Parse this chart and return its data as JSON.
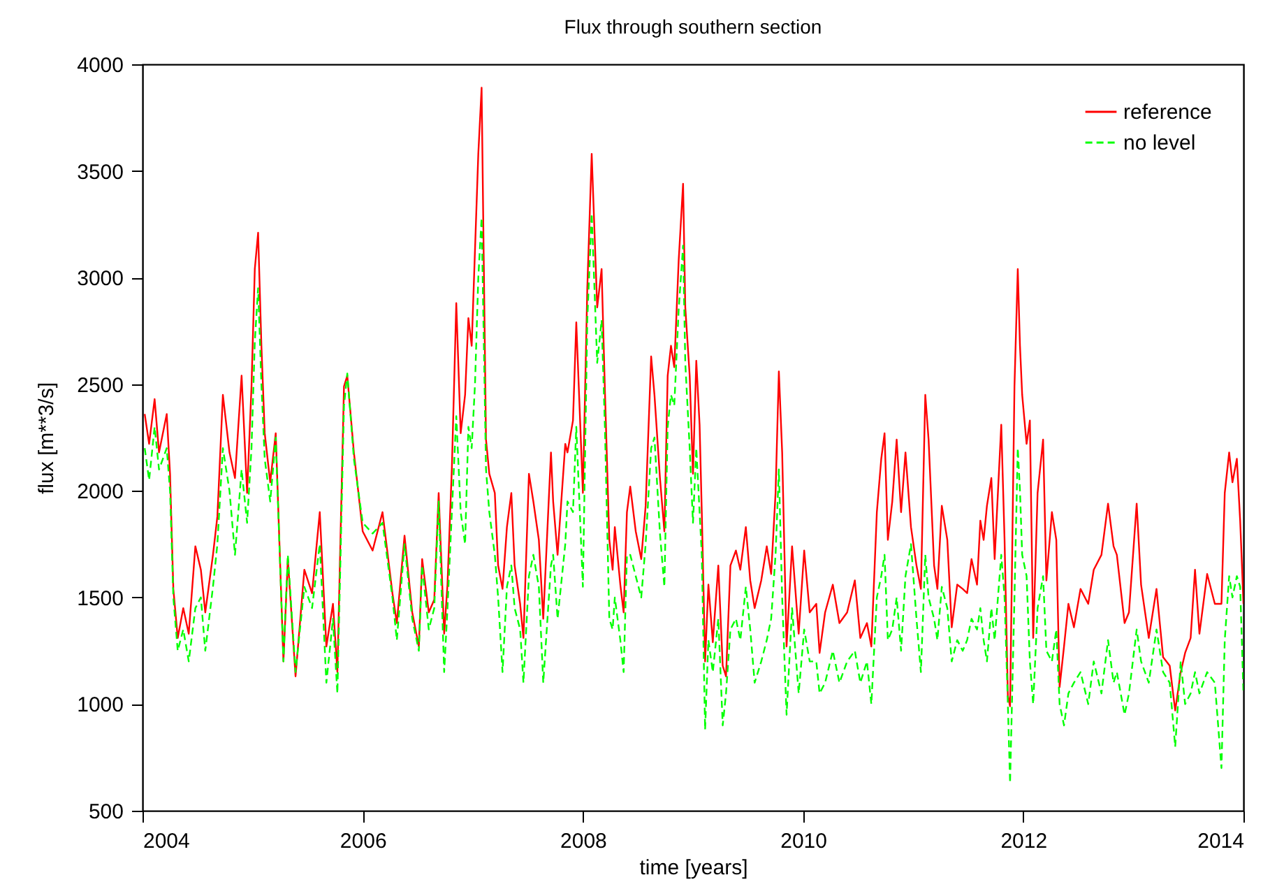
{
  "chart_data": {
    "type": "line",
    "title": "Flux through southern section",
    "xlabel": "time [years]",
    "ylabel": "flux [m**3/s]",
    "xlim": [
      2004,
      2014
    ],
    "xticks": [
      2004,
      2006,
      2008,
      2010,
      2012,
      2014
    ],
    "ylim": [
      500,
      4000
    ],
    "yticks": [
      500,
      1000,
      1500,
      2000,
      2500,
      3000,
      3500,
      4000
    ],
    "grid": false,
    "legend": "top right",
    "marker": "none",
    "x": [
      2004.02,
      2004.06,
      2004.11,
      2004.15,
      2004.22,
      2004.25,
      2004.28,
      2004.32,
      2004.37,
      2004.42,
      2004.48,
      2004.53,
      2004.57,
      2004.64,
      2004.68,
      2004.73,
      2004.79,
      2004.84,
      2004.9,
      2004.95,
      2004.99,
      2005.02,
      2005.05,
      2005.08,
      2005.11,
      2005.16,
      2005.21,
      2005.28,
      2005.32,
      2005.39,
      2005.47,
      2005.54,
      2005.61,
      2005.67,
      2005.73,
      2005.77,
      2005.83,
      2005.86,
      2005.92,
      2006.0,
      2006.09,
      2006.18,
      2006.27,
      2006.31,
      2006.38,
      2006.45,
      2006.51,
      2006.54,
      2006.6,
      2006.65,
      2006.69,
      2006.74,
      2006.77,
      2006.81,
      2006.85,
      2006.89,
      2006.93,
      2006.96,
      2006.99,
      2007.02,
      2007.05,
      2007.08,
      2007.1,
      2007.12,
      2007.15,
      2007.2,
      2007.23,
      2007.27,
      2007.31,
      2007.35,
      2007.38,
      2007.43,
      2007.46,
      2007.51,
      2007.55,
      2007.6,
      2007.64,
      2007.71,
      2007.73,
      2007.77,
      2007.84,
      2007.86,
      2007.91,
      2007.94,
      2008.0,
      2008.04,
      2008.08,
      2008.13,
      2008.17,
      2008.2,
      2008.24,
      2008.27,
      2008.29,
      2008.34,
      2008.37,
      2008.4,
      2008.43,
      2008.48,
      2008.53,
      2008.57,
      2008.62,
      2008.65,
      2008.7,
      2008.74,
      2008.77,
      2008.8,
      2008.83,
      2008.87,
      2008.91,
      2008.93,
      2008.97,
      2009.0,
      2009.03,
      2009.06,
      2009.08,
      2009.11,
      2009.14,
      2009.18,
      2009.23,
      2009.27,
      2009.3,
      2009.34,
      2009.39,
      2009.43,
      2009.48,
      2009.52,
      2009.56,
      2009.62,
      2009.67,
      2009.71,
      2009.75,
      2009.78,
      2009.81,
      2009.85,
      2009.9,
      2009.96,
      2010.01,
      2010.06,
      2010.12,
      2010.15,
      2010.2,
      2010.27,
      2010.33,
      2010.4,
      2010.47,
      2010.52,
      2010.58,
      2010.62,
      2010.67,
      2010.71,
      2010.74,
      2010.77,
      2010.81,
      2010.85,
      2010.89,
      2010.93,
      2010.98,
      2011.03,
      2011.07,
      2011.11,
      2011.14,
      2011.19,
      2011.22,
      2011.26,
      2011.31,
      2011.35,
      2011.4,
      2011.45,
      2011.49,
      2011.53,
      2011.58,
      2011.61,
      2011.64,
      2011.67,
      2011.71,
      2011.74,
      2011.8,
      2011.83,
      2011.86,
      2011.88,
      2011.92,
      2011.95,
      2011.97,
      2011.99,
      2012.03,
      2012.06,
      2012.09,
      2012.13,
      2012.18,
      2012.21,
      2012.26,
      2012.3,
      2012.33,
      2012.37,
      2012.41,
      2012.46,
      2012.52,
      2012.59,
      2012.64,
      2012.71,
      2012.77,
      2012.82,
      2012.85,
      2012.92,
      2012.96,
      2013.03,
      2013.07,
      2013.14,
      2013.21,
      2013.27,
      2013.33,
      2013.38,
      2013.43,
      2013.47,
      2013.52,
      2013.56,
      2013.6,
      2013.67,
      2013.74,
      2013.8,
      2013.83,
      2013.87,
      2013.9,
      2013.94,
      2013.97,
      2014.0
    ],
    "series": [
      {
        "name": "reference",
        "color": "#ff0000",
        "line_style": "solid",
        "values": [
          2360,
          2220,
          2430,
          2180,
          2360,
          2080,
          1540,
          1310,
          1450,
          1330,
          1740,
          1630,
          1430,
          1700,
          1880,
          2450,
          2180,
          2060,
          2540,
          1990,
          2490,
          3040,
          3210,
          2680,
          2270,
          2040,
          2270,
          1200,
          1680,
          1130,
          1630,
          1520,
          1900,
          1270,
          1470,
          1150,
          2490,
          2540,
          2180,
          1810,
          1720,
          1900,
          1520,
          1380,
          1790,
          1430,
          1270,
          1680,
          1430,
          1490,
          1990,
          1330,
          1560,
          2110,
          2880,
          2270,
          2450,
          2810,
          2680,
          3130,
          3580,
          3890,
          3060,
          2240,
          2080,
          1990,
          1650,
          1540,
          1830,
          1990,
          1650,
          1470,
          1310,
          2080,
          1950,
          1770,
          1400,
          2180,
          1950,
          1700,
          2220,
          2180,
          2330,
          2790,
          1990,
          2950,
          3580,
          2860,
          3040,
          2470,
          1770,
          1630,
          1830,
          1560,
          1430,
          1900,
          2020,
          1810,
          1680,
          1930,
          2630,
          2450,
          2060,
          1810,
          2540,
          2680,
          2580,
          3080,
          3440,
          2860,
          2540,
          2080,
          2610,
          2310,
          1900,
          1200,
          1560,
          1290,
          1650,
          1180,
          1130,
          1650,
          1720,
          1630,
          1830,
          1580,
          1450,
          1580,
          1740,
          1610,
          1990,
          2560,
          2180,
          1270,
          1740,
          1330,
          1720,
          1430,
          1470,
          1240,
          1430,
          1560,
          1380,
          1430,
          1580,
          1310,
          1380,
          1270,
          1900,
          2150,
          2270,
          1770,
          1950,
          2240,
          1900,
          2180,
          1830,
          1650,
          1540,
          2450,
          2240,
          1650,
          1540,
          1930,
          1770,
          1360,
          1560,
          1540,
          1520,
          1680,
          1560,
          1860,
          1770,
          1930,
          2060,
          1680,
          2310,
          1770,
          1040,
          990,
          2490,
          3040,
          2680,
          2450,
          2220,
          2330,
          1310,
          1990,
          2240,
          1580,
          1900,
          1770,
          1080,
          1270,
          1470,
          1360,
          1540,
          1470,
          1630,
          1700,
          1940,
          1740,
          1700,
          1380,
          1430,
          1940,
          1560,
          1310,
          1540,
          1220,
          1180,
          970,
          1150,
          1240,
          1310,
          1630,
          1330,
          1610,
          1470,
          1470,
          1990,
          2180,
          2040,
          2150,
          1860,
          1470
        ]
      },
      {
        "name": "no level",
        "color": "#00ff00",
        "line_style": "dashed",
        "values": [
          2200,
          2050,
          2300,
          2100,
          2200,
          2000,
          1500,
          1250,
          1350,
          1200,
          1450,
          1500,
          1250,
          1550,
          1750,
          2200,
          2000,
          1700,
          2100,
          1850,
          2200,
          2700,
          2950,
          2500,
          2150,
          1950,
          2250,
          1200,
          1700,
          1150,
          1550,
          1450,
          1750,
          1100,
          1400,
          1050,
          2400,
          2550,
          2150,
          1850,
          1800,
          1850,
          1500,
          1300,
          1750,
          1400,
          1250,
          1650,
          1350,
          1450,
          1950,
          1150,
          1450,
          1900,
          2350,
          1900,
          1750,
          2300,
          2200,
          2500,
          3000,
          3280,
          2700,
          2100,
          1900,
          1700,
          1500,
          1150,
          1550,
          1650,
          1450,
          1350,
          1100,
          1600,
          1700,
          1550,
          1100,
          1650,
          1700,
          1400,
          1750,
          1950,
          1900,
          2300,
          1550,
          2800,
          3300,
          2600,
          2800,
          2300,
          1400,
          1350,
          1500,
          1300,
          1150,
          1700,
          1700,
          1600,
          1500,
          1750,
          2200,
          2250,
          1800,
          1550,
          2300,
          2450,
          2400,
          2850,
          3150,
          2600,
          2200,
          1850,
          2200,
          1900,
          1700,
          880,
          1300,
          1150,
          1400,
          900,
          1050,
          1350,
          1400,
          1300,
          1550,
          1350,
          1100,
          1200,
          1300,
          1400,
          1700,
          2100,
          1500,
          950,
          1450,
          1050,
          1350,
          1200,
          1200,
          1050,
          1100,
          1250,
          1100,
          1200,
          1250,
          1100,
          1200,
          1000,
          1500,
          1600,
          1700,
          1300,
          1350,
          1500,
          1250,
          1600,
          1750,
          1400,
          1150,
          1700,
          1500,
          1400,
          1300,
          1550,
          1450,
          1200,
          1300,
          1250,
          1300,
          1400,
          1350,
          1450,
          1300,
          1200,
          1450,
          1300,
          1700,
          1500,
          1000,
          630,
          1500,
          2200,
          2000,
          1700,
          1600,
          1200,
          1000,
          1450,
          1600,
          1250,
          1200,
          1350,
          1000,
          900,
          1050,
          1100,
          1150,
          1000,
          1200,
          1050,
          1300,
          1100,
          1150,
          950,
          1050,
          1350,
          1200,
          1100,
          1350,
          1150,
          1100,
          800,
          1200,
          1000,
          1050,
          1150,
          1050,
          1150,
          1100,
          700,
          1300,
          1600,
          1500,
          1600,
          1550,
          1050
        ]
      }
    ]
  }
}
